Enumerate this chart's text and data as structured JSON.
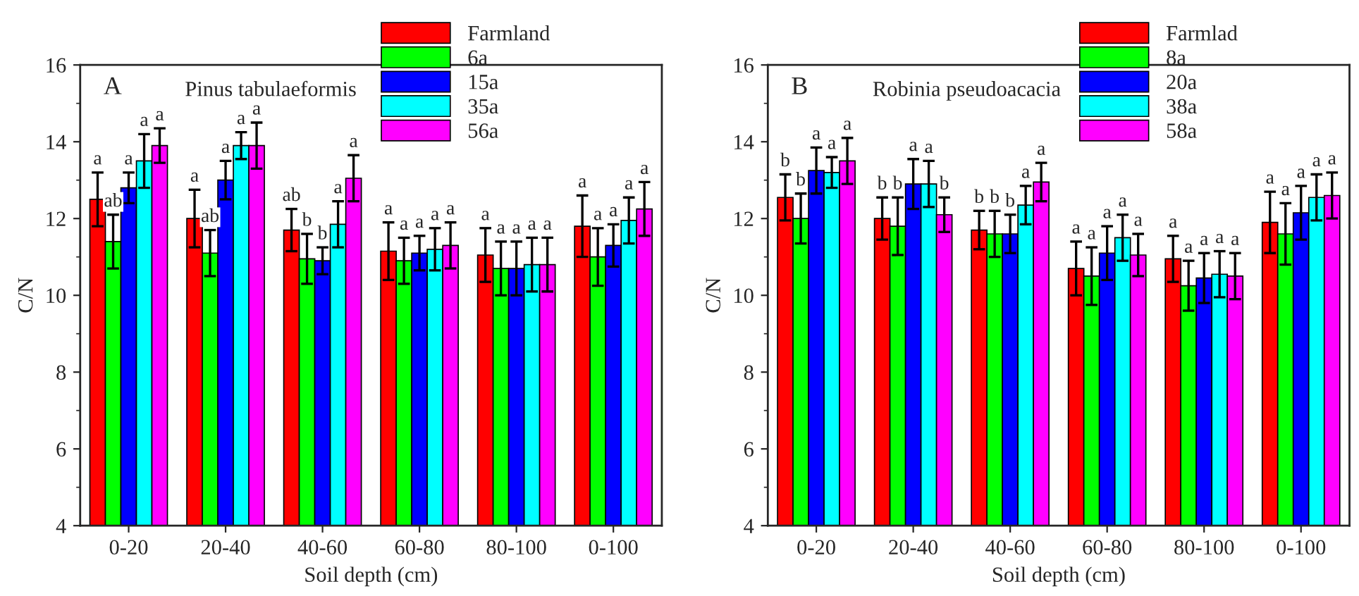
{
  "chart_data": [
    {
      "type": "bar",
      "title": "A",
      "subtitle": "Pinus tabulaeformis",
      "xlabel": "Soil depth (cm)",
      "ylabel": "C/N",
      "categories": [
        "0-20",
        "20-40",
        "40-60",
        "60-80",
        "80-100",
        "0-100"
      ],
      "ylim": [
        4,
        16
      ],
      "yticks": [
        4,
        6,
        8,
        10,
        12,
        14,
        16
      ],
      "legend": "top right",
      "grid": false,
      "series": [
        {
          "name": "Farmland",
          "color": "#ff0000",
          "values": [
            12.5,
            12.0,
            11.7,
            11.15,
            11.05,
            11.8
          ],
          "errors": [
            0.7,
            0.75,
            0.55,
            0.75,
            0.7,
            0.8
          ],
          "value_labels": [
            "a",
            "a",
            "ab",
            "a",
            "a",
            "a"
          ]
        },
        {
          "name": "6a",
          "color": "#00ff00",
          "values": [
            11.4,
            11.1,
            10.95,
            10.9,
            10.7,
            11.0
          ],
          "errors": [
            0.7,
            0.6,
            0.65,
            0.6,
            0.7,
            0.75
          ],
          "value_labels": [
            "ab",
            "ab",
            "b",
            "a",
            "a",
            "a"
          ]
        },
        {
          "name": "15a",
          "color": "#0000ff",
          "values": [
            12.8,
            13.0,
            10.9,
            11.1,
            10.7,
            11.3
          ],
          "errors": [
            0.4,
            0.5,
            0.35,
            0.45,
            0.7,
            0.55
          ],
          "value_labels": [
            "a",
            "a",
            "b",
            "a",
            "a",
            "a"
          ]
        },
        {
          "name": "35a",
          "color": "#00ffff",
          "values": [
            13.5,
            13.9,
            11.85,
            11.2,
            10.8,
            11.95
          ],
          "errors": [
            0.7,
            0.35,
            0.6,
            0.55,
            0.7,
            0.6
          ],
          "value_labels": [
            "a",
            "a",
            "a",
            "a",
            "a",
            "a"
          ]
        },
        {
          "name": "56a",
          "color": "#ff00ff",
          "values": [
            13.9,
            13.9,
            13.05,
            11.3,
            10.8,
            12.25
          ],
          "errors": [
            0.45,
            0.6,
            0.6,
            0.6,
            0.7,
            0.7
          ],
          "value_labels": [
            "a",
            "a",
            "a",
            "a",
            "a",
            "a"
          ]
        }
      ]
    },
    {
      "type": "bar",
      "title": "B",
      "subtitle": "Robinia pseudoacacia",
      "xlabel": "Soil depth (cm)",
      "ylabel": "C/N",
      "categories": [
        "0-20",
        "20-40",
        "40-60",
        "60-80",
        "80-100",
        "0-100"
      ],
      "ylim": [
        4,
        16
      ],
      "yticks": [
        4,
        6,
        8,
        10,
        12,
        14,
        16
      ],
      "legend": "top right",
      "grid": false,
      "series": [
        {
          "name": "Farmlad",
          "color": "#ff0000",
          "values": [
            12.55,
            12.0,
            11.7,
            10.7,
            10.95,
            11.9
          ],
          "errors": [
            0.6,
            0.55,
            0.5,
            0.7,
            0.6,
            0.8
          ],
          "value_labels": [
            "b",
            "b",
            "b",
            "a",
            "a",
            "a"
          ]
        },
        {
          "name": "8a",
          "color": "#00ff00",
          "values": [
            12.0,
            11.8,
            11.6,
            10.5,
            10.25,
            11.6
          ],
          "errors": [
            0.65,
            0.75,
            0.6,
            0.75,
            0.65,
            0.8
          ],
          "value_labels": [
            "b",
            "b",
            "b",
            "a",
            "a",
            "a"
          ]
        },
        {
          "name": "20a",
          "color": "#0000ff",
          "values": [
            13.25,
            12.9,
            11.6,
            11.1,
            10.45,
            12.15
          ],
          "errors": [
            0.6,
            0.65,
            0.5,
            0.7,
            0.65,
            0.7
          ],
          "value_labels": [
            "a",
            "a",
            "b",
            "a",
            "a",
            "a"
          ]
        },
        {
          "name": "38a",
          "color": "#00ffff",
          "values": [
            13.2,
            12.9,
            12.35,
            11.5,
            10.55,
            12.55
          ],
          "errors": [
            0.4,
            0.6,
            0.5,
            0.6,
            0.6,
            0.6
          ],
          "value_labels": [
            "a",
            "a",
            "a",
            "a",
            "a",
            "a"
          ]
        },
        {
          "name": "58a",
          "color": "#ff00ff",
          "values": [
            13.5,
            12.1,
            12.95,
            11.05,
            10.5,
            12.6
          ],
          "errors": [
            0.6,
            0.45,
            0.5,
            0.55,
            0.6,
            0.6
          ],
          "value_labels": [
            "a",
            "b",
            "a",
            "a",
            "a",
            "a"
          ]
        }
      ]
    }
  ]
}
